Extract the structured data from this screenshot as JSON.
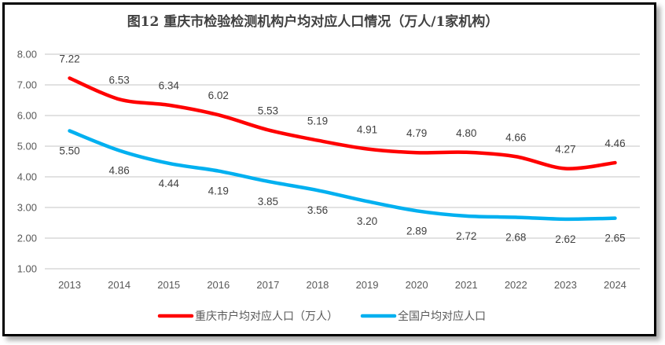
{
  "chart_data": {
    "type": "line",
    "title": "图12  重庆市检验检测机构户均对应人口情况（万人/1家机构）",
    "xlabel": "",
    "ylabel": "",
    "categories": [
      "2013",
      "2014",
      "2015",
      "2016",
      "2017",
      "2018",
      "2019",
      "2020",
      "2021",
      "2022",
      "2023",
      "2024"
    ],
    "series": [
      {
        "name": "重庆市户均对应人口（万人）",
        "color": "#ff0000",
        "values": [
          7.22,
          6.53,
          6.34,
          6.02,
          5.53,
          5.19,
          4.91,
          4.79,
          4.8,
          4.66,
          4.27,
          4.46
        ],
        "labels": [
          "7.22",
          "6.53",
          "6.34",
          "6.02",
          "5.53",
          "5.19",
          "4.91",
          "4.79",
          "4.80",
          "4.66",
          "4.27",
          "4.46"
        ],
        "label_position": "above"
      },
      {
        "name": "全国户均对应人口",
        "color": "#00b0f0",
        "values": [
          5.5,
          4.86,
          4.44,
          4.19,
          3.85,
          3.56,
          3.2,
          2.89,
          2.72,
          2.68,
          2.62,
          2.65
        ],
        "labels": [
          "5.50",
          "4.86",
          "4.44",
          "4.19",
          "3.85",
          "3.56",
          "3.20",
          "2.89",
          "2.72",
          "2.68",
          "2.62",
          "2.65"
        ],
        "label_position": "below"
      }
    ],
    "ylim": [
      1.0,
      8.0
    ],
    "yticks": [
      "1.00",
      "2.00",
      "3.00",
      "4.00",
      "5.00",
      "6.00",
      "7.00",
      "8.00"
    ],
    "grid": true,
    "legend_position": "bottom",
    "smooth": true
  }
}
